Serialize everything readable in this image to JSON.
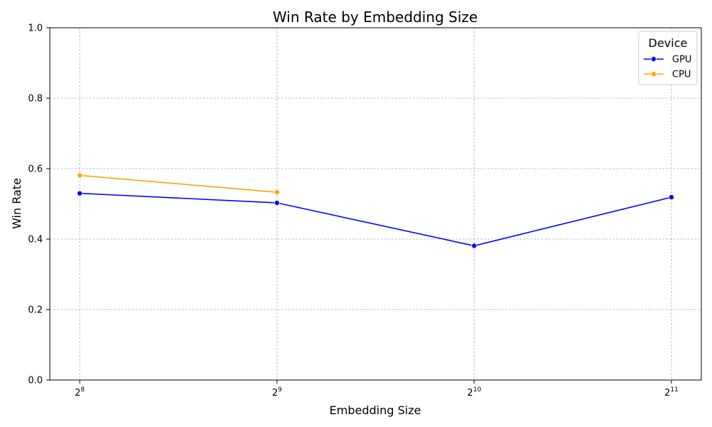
{
  "chart_data": {
    "type": "line",
    "title": "Win Rate by Embedding Size",
    "xlabel": "Embedding Size",
    "ylabel": "Win Rate",
    "x_scale": "log2",
    "x_ticks": [
      256,
      512,
      1024,
      2048
    ],
    "x_tick_labels": [
      {
        "base": "2",
        "exp": "8"
      },
      {
        "base": "2",
        "exp": "9"
      },
      {
        "base": "2",
        "exp": "10"
      },
      {
        "base": "2",
        "exp": "11"
      }
    ],
    "ylim": [
      0,
      1
    ],
    "y_ticks": [
      "0.0",
      "0.2",
      "0.4",
      "0.6",
      "0.8",
      "1.0"
    ],
    "grid": true,
    "legend": {
      "title": "Device",
      "placement": "top-right"
    },
    "series": [
      {
        "name": "GPU",
        "color": "#0000ff",
        "x": [
          256,
          512,
          1024,
          2048
        ],
        "y": [
          0.53,
          0.503,
          0.381,
          0.519
        ]
      },
      {
        "name": "CPU",
        "color": "#ffa500",
        "x": [
          256,
          512
        ],
        "y": [
          0.581,
          0.533
        ]
      }
    ]
  }
}
